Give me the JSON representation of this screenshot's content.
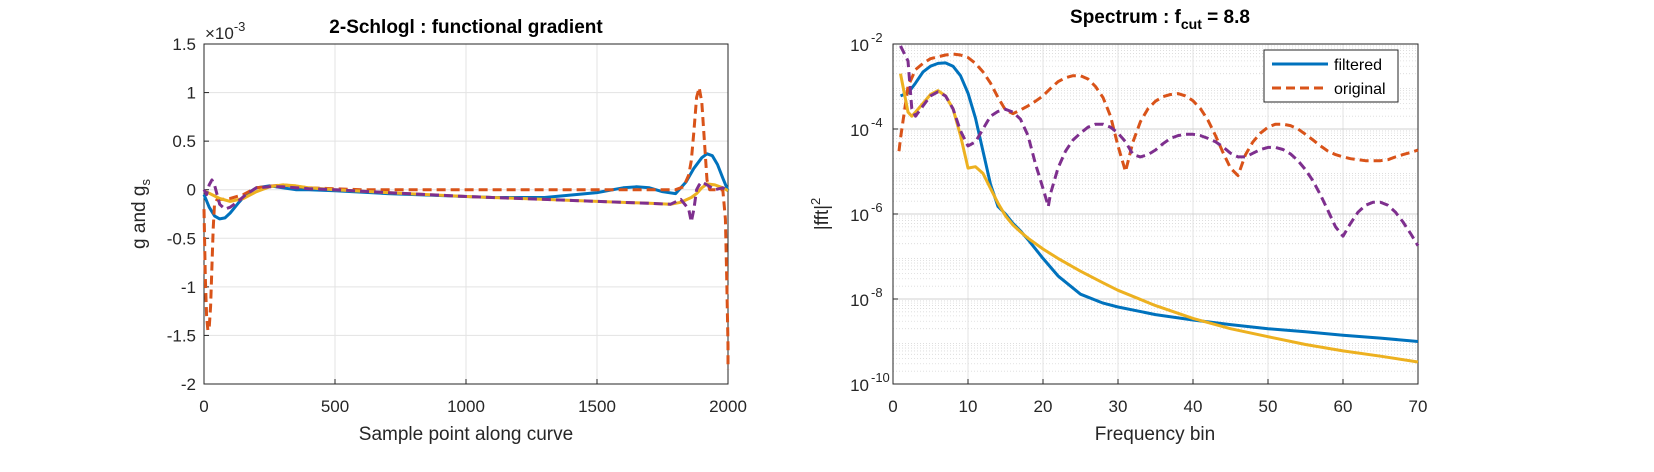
{
  "chart_data": [
    {
      "type": "line",
      "title": "2-Schlogl : functional gradient",
      "xlabel": "Sample point along curve",
      "ylabel_main": "g and g",
      "ylabel_sub": "s",
      "exponent_label": "×10",
      "exponent_power": "-3",
      "xlim": [
        0,
        2000
      ],
      "ylim": [
        -2,
        1.5
      ],
      "yscale": "linear",
      "grid": true,
      "xticks": [
        0,
        500,
        1000,
        1500,
        2000
      ],
      "yticks": [
        -2,
        -1.5,
        -1,
        -0.5,
        0,
        0.5,
        1,
        1.5
      ],
      "ytick_labels": [
        "-2",
        "-1.5",
        "-1",
        "-0.5",
        "0",
        "0.5",
        "1",
        "1.5"
      ],
      "series": [
        {
          "color": "#0072BD",
          "style": "solid",
          "x": [
            0,
            20,
            40,
            60,
            80,
            100,
            130,
            160,
            200,
            250,
            300,
            350,
            400,
            500,
            700,
            900,
            1100,
            1300,
            1500,
            1600,
            1650,
            1700,
            1750,
            1800,
            1840,
            1870,
            1900,
            1920,
            1940,
            1960,
            1980,
            2000
          ],
          "y": [
            -0.05,
            -0.18,
            -0.27,
            -0.3,
            -0.29,
            -0.24,
            -0.14,
            -0.05,
            0.02,
            0.04,
            0.02,
            0.0,
            0.0,
            -0.01,
            -0.04,
            -0.06,
            -0.08,
            -0.08,
            -0.03,
            0.02,
            0.03,
            0.02,
            -0.02,
            -0.04,
            0.08,
            0.22,
            0.33,
            0.37,
            0.35,
            0.26,
            0.12,
            -0.01
          ]
        },
        {
          "color": "#D95319",
          "style": "dashed",
          "x": [
            0,
            5,
            10,
            15,
            20,
            25,
            30,
            35,
            40,
            50,
            70,
            100,
            150,
            200,
            300,
            400,
            600,
            1000,
            1400,
            1700,
            1800,
            1830,
            1850,
            1860,
            1870,
            1880,
            1890,
            1900,
            1910,
            1920,
            1930,
            1950,
            1980,
            1990,
            1995,
            2000,
            2002
          ],
          "y": [
            -0.2,
            -0.9,
            -1.3,
            -1.45,
            -1.42,
            -1.2,
            -0.8,
            -0.4,
            -0.15,
            -0.1,
            -0.1,
            -0.09,
            -0.05,
            0.02,
            0.05,
            0.02,
            0.0,
            0.0,
            0.0,
            0.0,
            0.0,
            0.03,
            0.15,
            0.3,
            0.6,
            0.95,
            1.05,
            0.9,
            0.5,
            0.1,
            0.0,
            0.0,
            0.0,
            -0.3,
            -0.9,
            -1.6,
            -1.85
          ]
        },
        {
          "color": "#EDB120",
          "style": "solid",
          "x": [
            0,
            30,
            60,
            100,
            150,
            200,
            250,
            300,
            350,
            400,
            500,
            700,
            1000,
            1300,
            1500,
            1700,
            1780,
            1820,
            1860,
            1880,
            1900,
            1920,
            1950,
            1980,
            2000
          ],
          "y": [
            -0.01,
            -0.05,
            -0.09,
            -0.12,
            -0.09,
            -0.02,
            0.03,
            0.05,
            0.04,
            0.02,
            0.0,
            -0.03,
            -0.07,
            -0.1,
            -0.12,
            -0.14,
            -0.15,
            -0.13,
            -0.08,
            -0.04,
            0.02,
            0.06,
            0.05,
            0.02,
            -0.01
          ]
        },
        {
          "color": "#7E2F8E",
          "style": "dashed",
          "x": [
            0,
            10,
            20,
            30,
            40,
            50,
            60,
            80,
            100,
            130,
            160,
            200,
            250,
            300,
            350,
            400,
            500,
            700,
            1000,
            1300,
            1500,
            1700,
            1780,
            1820,
            1850,
            1860,
            1870,
            1880,
            1890,
            1900,
            1920,
            1950,
            1980,
            2000
          ],
          "y": [
            0.0,
            -0.05,
            0.05,
            0.1,
            0.05,
            -0.05,
            -0.15,
            -0.2,
            -0.18,
            -0.12,
            -0.05,
            0.02,
            0.03,
            0.03,
            0.02,
            0.01,
            0.0,
            -0.03,
            -0.07,
            -0.1,
            -0.12,
            -0.14,
            -0.15,
            -0.1,
            -0.2,
            -0.33,
            -0.2,
            0.0,
            0.05,
            0.08,
            0.05,
            0.0,
            0.02,
            -0.01
          ]
        }
      ]
    },
    {
      "type": "line",
      "title_main": "Spectrum : f",
      "title_sub": "cut",
      "title_tail": " = 8.8",
      "xlabel": "Frequency bin",
      "ylabel_main": "|fft|",
      "ylabel_sup": "2",
      "xlim": [
        0,
        70
      ],
      "ylim": [
        1e-10,
        0.01
      ],
      "yscale": "log",
      "grid": true,
      "minor_grid": true,
      "xticks": [
        0,
        10,
        20,
        30,
        40,
        50,
        60,
        70
      ],
      "yticks_exp": [
        -10,
        -8,
        -6,
        -4,
        -2
      ],
      "ytick_base": "10",
      "legend": {
        "position": "top-right",
        "entries": [
          "filtered",
          "original"
        ]
      },
      "series": [
        {
          "name": "filtered",
          "color": "#0072BD",
          "style": "solid",
          "x": [
            1,
            2,
            3,
            4,
            5,
            6,
            7,
            8,
            9,
            10,
            11,
            12,
            13,
            14,
            15,
            16,
            17,
            18,
            20,
            22,
            25,
            28,
            30,
            35,
            40,
            45,
            50,
            55,
            60,
            65,
            70
          ],
          "y": [
            0.0006,
            0.0007,
            0.0012,
            0.0022,
            0.003,
            0.0035,
            0.0036,
            0.003,
            0.0018,
            0.0007,
            0.00018,
            3e-05,
            5e-06,
            1.5e-06,
            1e-06,
            6e-07,
            4e-07,
            2.5e-07,
            9e-08,
            3.5e-08,
            1.3e-08,
            8e-09,
            6.5e-09,
            4.3e-09,
            3.2e-09,
            2.5e-09,
            2e-09,
            1.7e-09,
            1.4e-09,
            1.2e-09,
            1e-09
          ]
        },
        {
          "name": "original",
          "color": "#D95319",
          "style": "dashed",
          "x": [
            0.8,
            1,
            2,
            3,
            4,
            5,
            6,
            7,
            8,
            9,
            10,
            11,
            12,
            13,
            14,
            15,
            16,
            17,
            18,
            19,
            20,
            21,
            22,
            23,
            24,
            25,
            26,
            27,
            28,
            29,
            30,
            31,
            32,
            33,
            34,
            35,
            36,
            37,
            38,
            39,
            40,
            41,
            42,
            43,
            44,
            45,
            46,
            47,
            48,
            49,
            50,
            51,
            52,
            53,
            54,
            55,
            56,
            57,
            58,
            59,
            60,
            61,
            62,
            63,
            64,
            65,
            66,
            67,
            68,
            69,
            70
          ],
          "y": [
            3e-05,
            6e-05,
            0.001,
            0.0025,
            0.0035,
            0.0045,
            0.005,
            0.0055,
            0.0058,
            0.0055,
            0.0048,
            0.0035,
            0.0022,
            0.0012,
            0.00055,
            0.00028,
            0.00023,
            0.00028,
            0.00035,
            0.00045,
            0.0006,
            0.0009,
            0.0013,
            0.0016,
            0.0018,
            0.0018,
            0.0015,
            0.001,
            0.00055,
            0.0002,
            4e-05,
            1e-05,
            5e-05,
            0.00015,
            0.0003,
            0.00045,
            0.00058,
            0.00065,
            0.00068,
            0.0006,
            0.00046,
            0.0003,
            0.00016,
            7e-05,
            2.8e-05,
            1.2e-05,
            8e-06,
            2.5e-05,
            5e-05,
            8e-05,
            0.00011,
            0.00013,
            0.00013,
            0.00012,
            0.0001,
            7.5e-05,
            5.5e-05,
            4e-05,
            3e-05,
            2.5e-05,
            2.2e-05,
            2e-05,
            1.9e-05,
            1.8e-05,
            1.8e-05,
            1.8e-05,
            1.9e-05,
            2.2e-05,
            2.5e-05,
            2.8e-05,
            3.2e-05
          ]
        },
        {
          "color": "#EDB120",
          "style": "solid",
          "x": [
            1,
            2,
            2.5,
            3,
            4,
            5,
            6,
            7,
            8,
            9,
            10,
            11,
            12,
            13,
            14,
            15,
            16,
            17,
            18,
            20,
            22,
            25,
            28,
            30,
            35,
            40,
            45,
            50,
            55,
            60,
            65,
            70
          ],
          "y": [
            0.002,
            0.00025,
            0.0002,
            0.00025,
            0.0004,
            0.00065,
            0.0008,
            0.0006,
            0.0003,
            7e-05,
            1.2e-05,
            1.3e-05,
            9e-06,
            4e-06,
            1.8e-06,
            9e-07,
            5.5e-07,
            3.8e-07,
            2.7e-07,
            1.5e-07,
            9e-08,
            4.5e-08,
            2.4e-08,
            1.6e-08,
            7e-09,
            3.5e-09,
            2e-09,
            1.3e-09,
            8.5e-10,
            6e-10,
            4.5e-10,
            3.3e-10
          ]
        },
        {
          "color": "#7E2F8E",
          "style": "dashed",
          "x": [
            1,
            2,
            2.5,
            3,
            4,
            5,
            6,
            7,
            8,
            9,
            10,
            11,
            12,
            13,
            14,
            15,
            16,
            17,
            18,
            19,
            20,
            20.7,
            21,
            22,
            23,
            24,
            25,
            26,
            27,
            28,
            29,
            30,
            31,
            32,
            33,
            34,
            35,
            36,
            37,
            38,
            39,
            40,
            41,
            42,
            43,
            44,
            45,
            46,
            47,
            48,
            49,
            50,
            51,
            52,
            53,
            54,
            55,
            56,
            57,
            58,
            59,
            60,
            61,
            62,
            63,
            64,
            65,
            66,
            67,
            68,
            69,
            70
          ],
          "y": [
            0.009,
            0.004,
            0.0003,
            0.0002,
            0.00035,
            0.0006,
            0.00075,
            0.0006,
            0.0003,
            9e-05,
            4e-05,
            5e-05,
            0.0001,
            0.0002,
            0.00026,
            0.00029,
            0.00025,
            0.00017,
            7e-05,
            1.5e-05,
            4e-06,
            1.5e-06,
            3e-06,
            1.2e-05,
            3e-05,
            5.5e-05,
            8e-05,
            0.00011,
            0.00013,
            0.00013,
            0.00011,
            8e-05,
            5e-05,
            2.5e-05,
            2.2e-05,
            2.5e-05,
            3.2e-05,
            4.5e-05,
            6e-05,
            7e-05,
            7.5e-05,
            7.5e-05,
            7e-05,
            6e-05,
            5e-05,
            3.8e-05,
            2.7e-05,
            2.2e-05,
            2.2e-05,
            2.7e-05,
            3.3e-05,
            3.7e-05,
            3.7e-05,
            3.3e-05,
            2.6e-05,
            1.8e-05,
            1.1e-05,
            6e-06,
            2.8e-06,
            1.2e-06,
            5e-07,
            3e-07,
            6e-07,
            1.1e-06,
            1.6e-06,
            1.9e-06,
            1.9e-06,
            1.6e-06,
            1.1e-06,
            6.5e-07,
            3.5e-07,
            1.8e-07
          ]
        }
      ]
    }
  ]
}
